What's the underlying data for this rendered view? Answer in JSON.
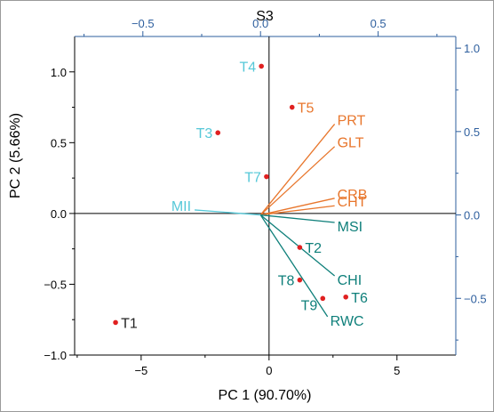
{
  "chart_data": {
    "type": "biplot",
    "title": "S3",
    "xlabel": "PC 1 (90.70%)",
    "ylabel": "PC 2 (5.66%)",
    "bottom_axis": {
      "range": [
        -7.6,
        7.3
      ],
      "ticks": [
        -5,
        0,
        5
      ],
      "tick_labels": [
        "−5",
        "0",
        "5"
      ]
    },
    "left_axis": {
      "range": [
        -1.0,
        1.25
      ],
      "ticks": [
        -1.0,
        -0.5,
        0.0,
        0.5,
        1.0
      ],
      "tick_labels": [
        "−1.0",
        "−0.5",
        "0.0",
        "0.5",
        "1.0"
      ]
    },
    "top_axis": {
      "range": [
        -0.79,
        0.83
      ],
      "ticks": [
        -0.5,
        0.0,
        0.5
      ],
      "tick_labels": [
        "−0.5",
        "0.0",
        "0.5"
      ]
    },
    "right_axis": {
      "range": [
        -0.84,
        1.07
      ],
      "ticks": [
        -0.5,
        0.0,
        0.5,
        1.0
      ],
      "tick_labels": [
        "−0.5",
        "0.0",
        "0.5",
        "1.0"
      ]
    },
    "zero_lines": true,
    "scores": [
      {
        "label": "T1",
        "x": -6.0,
        "y": -0.77,
        "color": "#222222"
      },
      {
        "label": "T2",
        "x": 1.2,
        "y": -0.24,
        "color": "#0e7f7a"
      },
      {
        "label": "T3",
        "x": -2.0,
        "y": 0.57,
        "color": "#56c8d8"
      },
      {
        "label": "T4",
        "x": -0.3,
        "y": 1.04,
        "color": "#56c8d8"
      },
      {
        "label": "T5",
        "x": 0.9,
        "y": 0.75,
        "color": "#e8762c"
      },
      {
        "label": "T6",
        "x": 3.0,
        "y": -0.59,
        "color": "#0e7f7a"
      },
      {
        "label": "T7",
        "x": -0.1,
        "y": 0.26,
        "color": "#56c8d8"
      },
      {
        "label": "T8",
        "x": 1.2,
        "y": -0.47,
        "color": "#0e7f7a"
      },
      {
        "label": "T9",
        "x": 2.1,
        "y": -0.6,
        "color": "#0e7f7a"
      }
    ],
    "loadings": [
      {
        "label": "PRT",
        "x": 0.315,
        "y": 0.545,
        "color": "#e8762c"
      },
      {
        "label": "GLT",
        "x": 0.315,
        "y": 0.41,
        "color": "#e8762c"
      },
      {
        "label": "CRB",
        "x": 0.315,
        "y": 0.1,
        "color": "#e8762c"
      },
      {
        "label": "CHT",
        "x": 0.315,
        "y": 0.055,
        "color": "#e8762c"
      },
      {
        "label": "MSI",
        "x": 0.315,
        "y": -0.045,
        "color": "#0e7f7a"
      },
      {
        "label": "CHI",
        "x": 0.315,
        "y": -0.365,
        "color": "#0e7f7a"
      },
      {
        "label": "RWC",
        "x": 0.285,
        "y": -0.61,
        "color": "#0e7f7a"
      },
      {
        "label": "MII",
        "x": -0.28,
        "y": 0.03,
        "color": "#56c8d8"
      }
    ],
    "colors": {
      "axis_black": "#000000",
      "axis_blue": "#2e5f9e",
      "point_red": "#e02020"
    }
  }
}
